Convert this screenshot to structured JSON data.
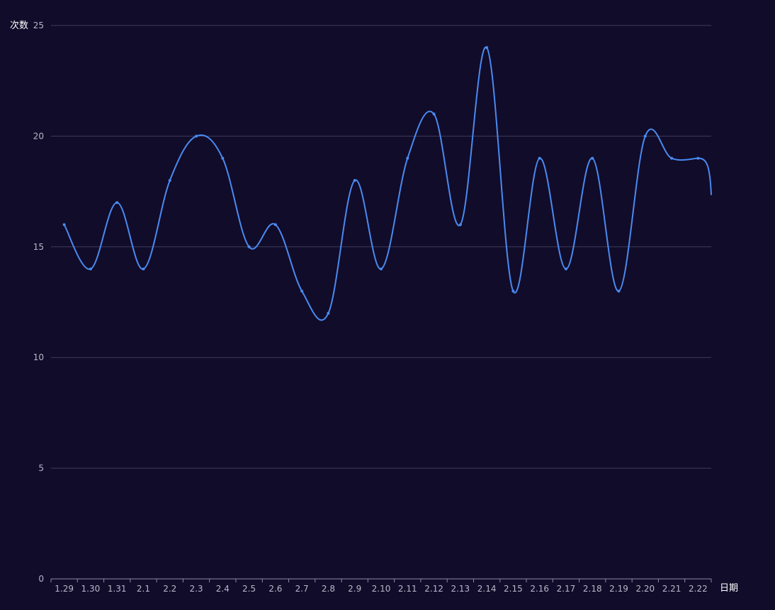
{
  "chart_data": {
    "type": "line",
    "smooth": true,
    "ylabel": "次数",
    "xlabel": "日期",
    "categories": [
      "1.29",
      "1.30",
      "1.31",
      "2.1",
      "2.2",
      "2.3",
      "2.4",
      "2.5",
      "2.6",
      "2.7",
      "2.8",
      "2.9",
      "2.10",
      "2.11",
      "2.12",
      "2.13",
      "2.14",
      "2.15",
      "2.16",
      "2.17",
      "2.18",
      "2.19",
      "2.20",
      "2.21",
      "2.22"
    ],
    "series": [
      {
        "values": [
          16,
          14,
          17,
          14,
          18,
          20,
          19,
          15,
          16,
          13,
          12,
          18,
          14,
          19,
          21,
          16,
          24,
          13,
          19,
          14,
          19,
          13,
          20,
          19,
          19
        ]
      }
    ],
    "yticks": [
      "0",
      "5",
      "10",
      "15",
      "20",
      "25"
    ],
    "ylim": [
      0,
      25
    ],
    "grid": true,
    "colors": {
      "line": "#4a8af0",
      "grid": "#3f3b5a",
      "axis": "#8f8ca6",
      "background": "#110c2a"
    }
  }
}
